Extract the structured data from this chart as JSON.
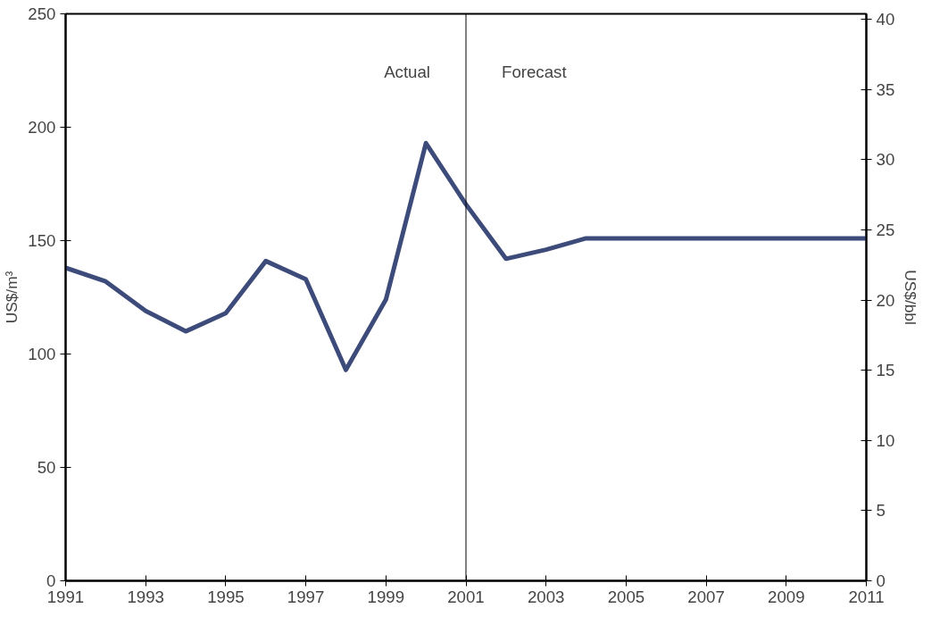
{
  "chart_data": {
    "type": "line",
    "ylabel": "US$/m³",
    "y2label": "US$/bbl",
    "x": [
      1991,
      1992,
      1993,
      1994,
      1995,
      1996,
      1997,
      1998,
      1999,
      2000,
      2001,
      2002,
      2003,
      2004,
      2005,
      2006,
      2007,
      2008,
      2009,
      2010,
      2011
    ],
    "series": [
      {
        "color": "#3d4b7a",
        "values": [
          138,
          132,
          119,
          110,
          118,
          141,
          133,
          93,
          124,
          193,
          166,
          142,
          146,
          151,
          151,
          151,
          151,
          151,
          151,
          151,
          151
        ]
      }
    ],
    "xlim": [
      1991,
      2011
    ],
    "xticks": [
      1991,
      1993,
      1995,
      1997,
      1999,
      2001,
      2003,
      2005,
      2007,
      2009,
      2011
    ],
    "ylim": [
      0,
      250
    ],
    "yticks": [
      0,
      50,
      100,
      150,
      200,
      250
    ],
    "y2lim": [
      0,
      40.4
    ],
    "y2ticks": [
      0,
      5,
      10,
      15,
      20,
      25,
      30,
      35,
      40
    ],
    "ref_lines": [
      {
        "axis": "x",
        "value": 2001,
        "color": "#000000"
      }
    ],
    "annotations": [
      "Actual",
      "Forecast"
    ],
    "grid": false,
    "marker": "none",
    "line_style": "solid"
  }
}
